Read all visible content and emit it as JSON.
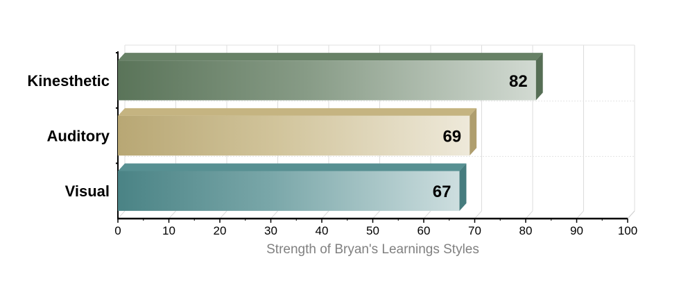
{
  "chart_data": {
    "type": "bar",
    "orientation": "horizontal",
    "style": "3d",
    "categories": [
      "Kinesthetic",
      "Auditory",
      "Visual"
    ],
    "values": [
      82,
      69,
      67
    ],
    "value_labels": [
      "82",
      "69",
      "67"
    ],
    "colors": [
      "#5f7a5e",
      "#c2b07a",
      "#4e8a8c"
    ],
    "title": "",
    "xlabel": "Strength of Bryan's Learnings Styles",
    "ylabel": "",
    "xlim": [
      0,
      100
    ],
    "xticks": [
      "0",
      "10",
      "20",
      "30",
      "40",
      "50",
      "60",
      "70",
      "80",
      "90",
      "100"
    ],
    "grid": true,
    "legend": "none"
  }
}
